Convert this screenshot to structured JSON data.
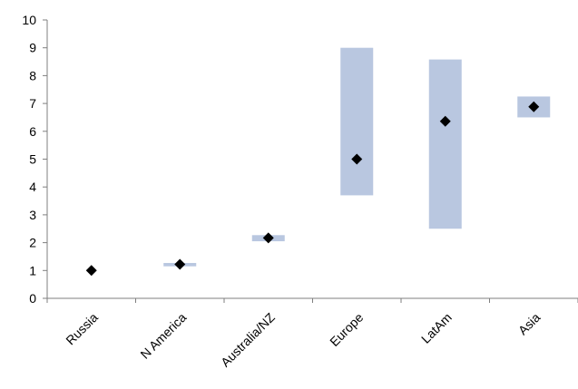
{
  "chart_data": {
    "type": "scatter",
    "title": "",
    "xlabel": "",
    "ylabel": "",
    "categories": [
      "Russia",
      "N America",
      "Australia/NZ",
      "Europe",
      "LatAm",
      "Asia"
    ],
    "ylim": [
      0,
      10
    ],
    "yticks": [
      0,
      1,
      2,
      3,
      4,
      5,
      6,
      7,
      8,
      9,
      10
    ],
    "grid": false,
    "legend": "none",
    "series": [
      {
        "marker": "diamond",
        "values": [
          1.0,
          1.22,
          2.17,
          5.0,
          6.36,
          6.88
        ]
      }
    ],
    "ranges": [
      null,
      [
        1.15,
        1.27
      ],
      [
        2.05,
        2.27
      ],
      [
        3.7,
        9.0
      ],
      [
        2.5,
        8.58
      ],
      [
        6.5,
        7.25
      ]
    ],
    "colors": {
      "range_fill": "#b9c7e0",
      "marker": "#000000",
      "axis": "#7f7f7f"
    }
  }
}
